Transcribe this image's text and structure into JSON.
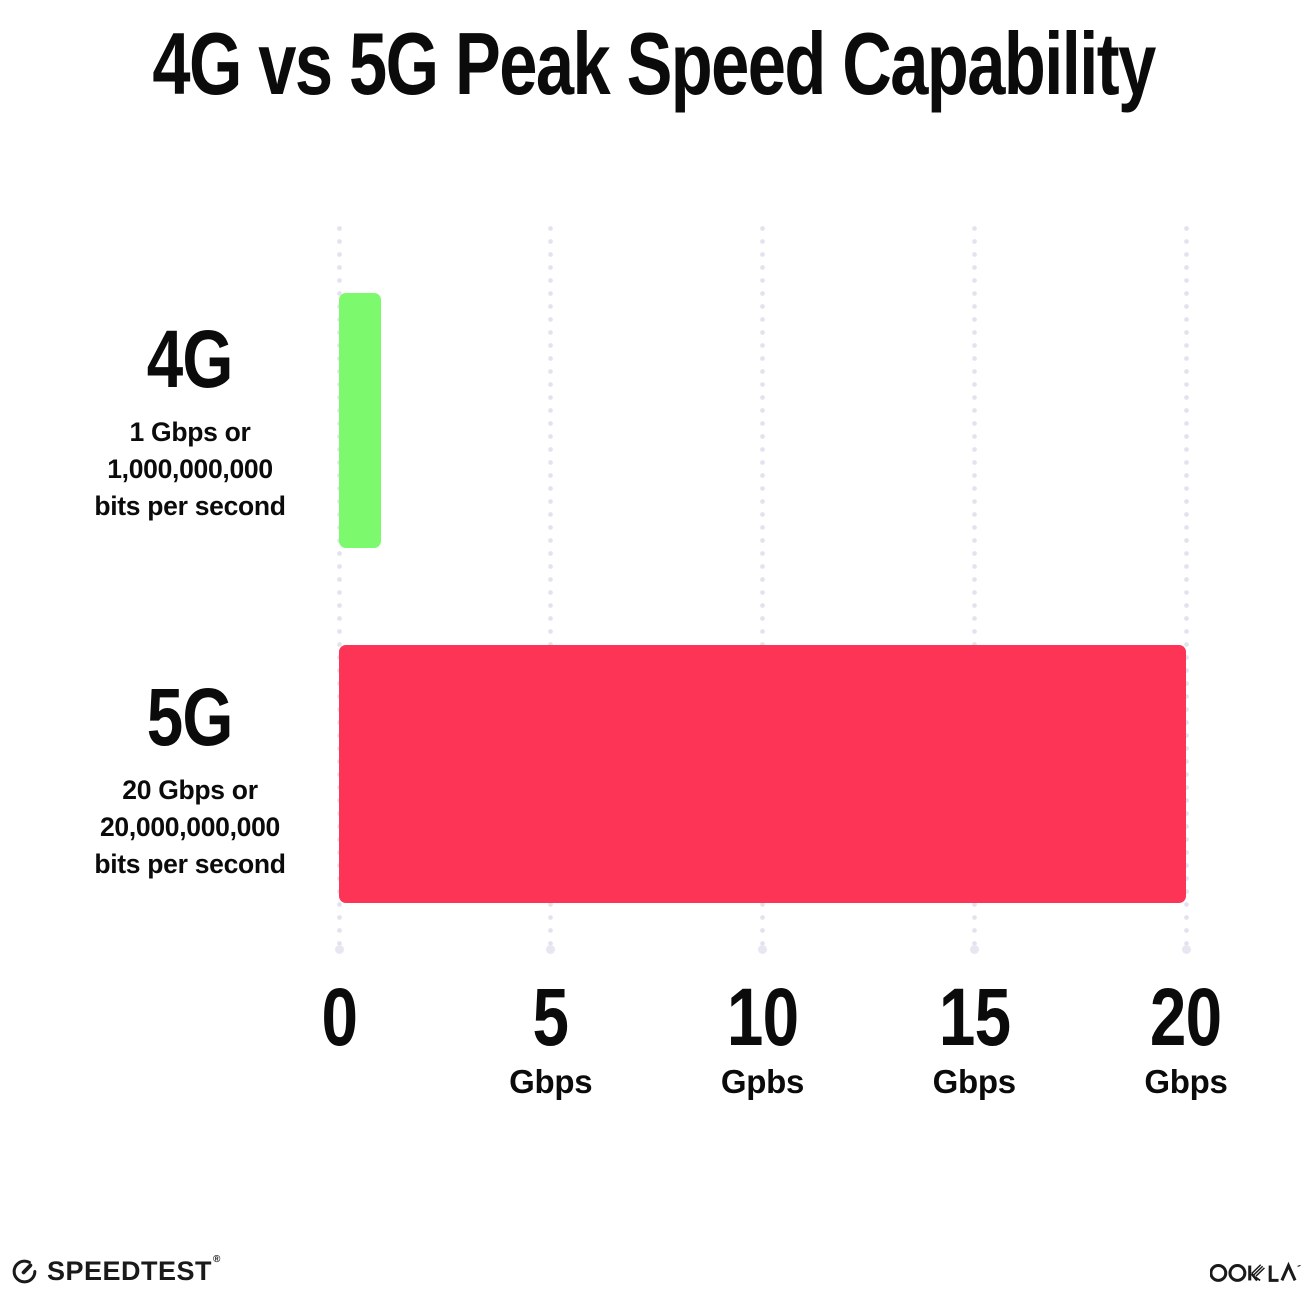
{
  "title": "4G vs 5G Peak Speed Capability",
  "chart_data": {
    "type": "bar",
    "orientation": "horizontal",
    "title": "4G vs 5G Peak Speed Capability",
    "categories": [
      "4G",
      "5G"
    ],
    "values": [
      1,
      20
    ],
    "xlim": [
      0,
      20
    ],
    "grid": "vertical-dotted",
    "bars": [
      {
        "label": "4G",
        "sublabel_lines": [
          "1 Gbps or",
          "1,000,000,000",
          "bits per second"
        ],
        "value": 1,
        "color": "#7df96d"
      },
      {
        "label": "5G",
        "sublabel_lines": [
          "20 Gbps or",
          "20,000,000,000",
          "bits per second"
        ],
        "value": 20,
        "color": "#fd3456"
      }
    ],
    "x_ticks": [
      {
        "value": 0,
        "label": "0",
        "unit": ""
      },
      {
        "value": 5,
        "label": "5",
        "unit": "Gbps"
      },
      {
        "value": 10,
        "label": "10",
        "unit": "Gpbs"
      },
      {
        "value": 15,
        "label": "15",
        "unit": "Gbps"
      },
      {
        "value": 20,
        "label": "20",
        "unit": "Gbps"
      }
    ]
  },
  "colors": {
    "bar_4g_green": "#7df96d",
    "bar_5g_pink": "#fd3456",
    "gridline": "#e3e3ef",
    "text": "#0b0b0b",
    "background": "#ffffff"
  },
  "footer": {
    "speedtest_label": "SPEEDTEST",
    "speedtest_trademark": "®",
    "ookla_label": "OOKLA"
  }
}
